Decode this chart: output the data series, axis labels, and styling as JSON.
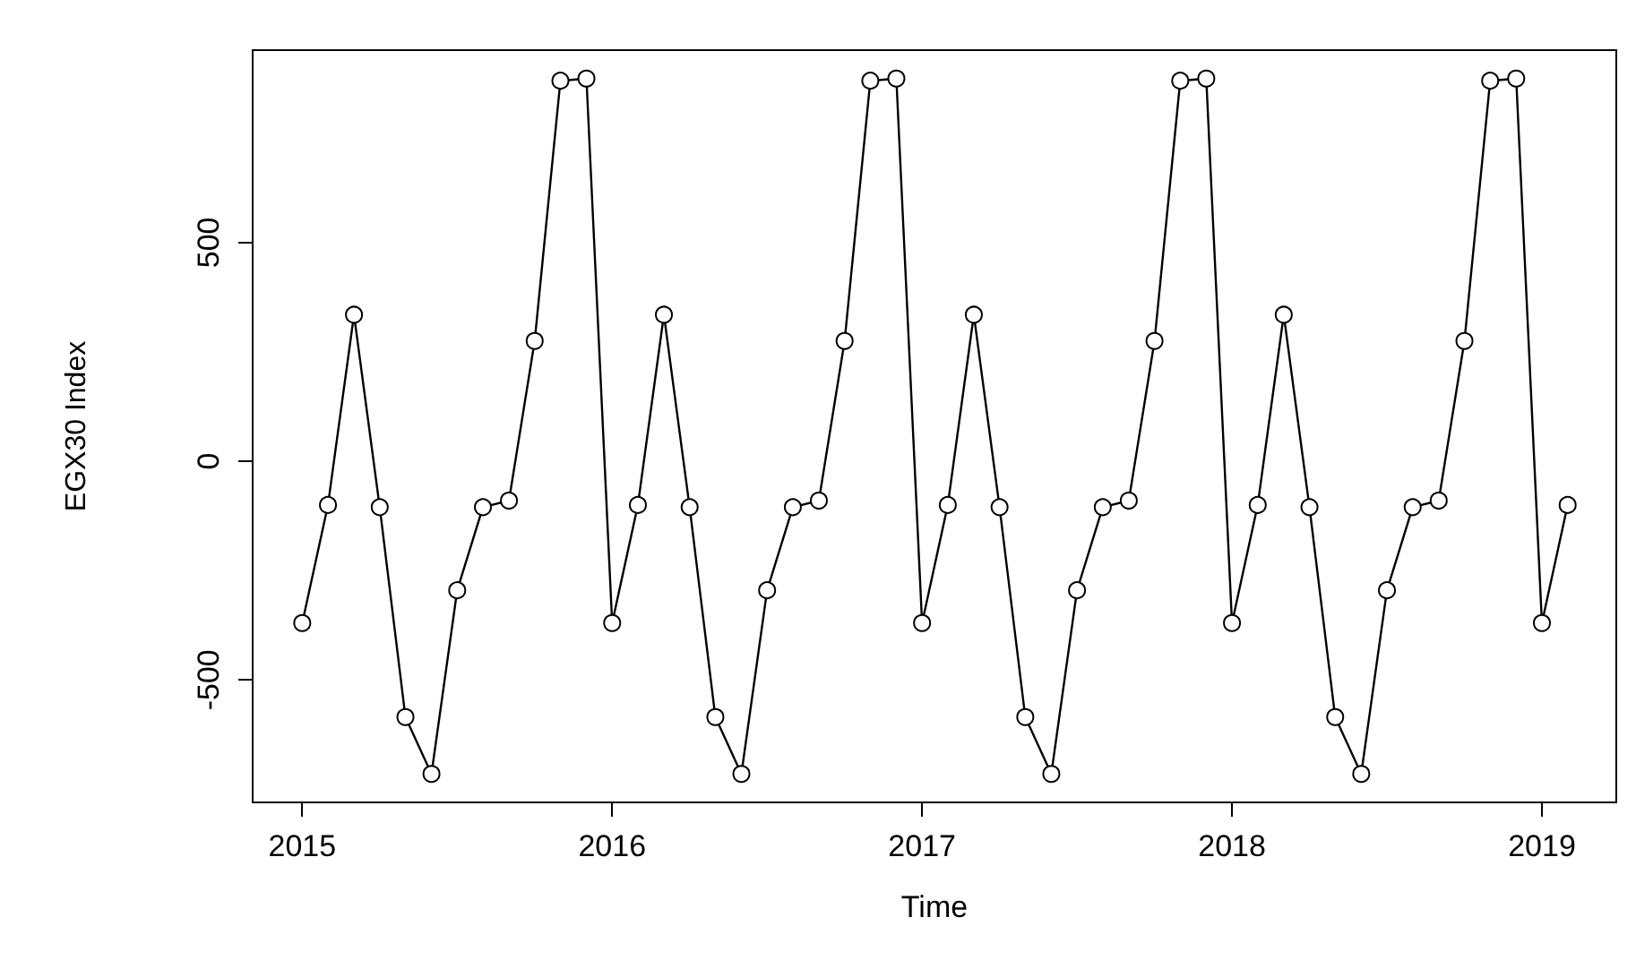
{
  "chart_data": {
    "type": "line",
    "xlabel": "Time",
    "ylabel": "EGX30 Index",
    "x": [
      2015,
      2015.083,
      2015.167,
      2015.25,
      2015.333,
      2015.417,
      2015.5,
      2015.583,
      2015.667,
      2015.75,
      2015.833,
      2015.917,
      2016,
      2016.083,
      2016.167,
      2016.25,
      2016.333,
      2016.417,
      2016.5,
      2016.583,
      2016.667,
      2016.75,
      2016.833,
      2016.917,
      2017,
      2017.083,
      2017.167,
      2017.25,
      2017.333,
      2017.417,
      2017.5,
      2017.583,
      2017.667,
      2017.75,
      2017.833,
      2017.917,
      2018,
      2018.083,
      2018.167,
      2018.25,
      2018.333,
      2018.417,
      2018.5,
      2018.583,
      2018.667,
      2018.75,
      2018.833,
      2018.917,
      2019,
      2019.083
    ],
    "series": [
      {
        "color": "#000000",
        "values": [
          -370,
          -100,
          335,
          -105,
          -585,
          -715,
          -295,
          -105,
          -90,
          275,
          870,
          875,
          -370,
          -100,
          335,
          -105,
          -585,
          -715,
          -295,
          -105,
          -90,
          275,
          870,
          875,
          -370,
          -100,
          335,
          -105,
          -585,
          -715,
          -295,
          -105,
          -90,
          275,
          870,
          875,
          -370,
          -100,
          335,
          -105,
          -585,
          -715,
          -295,
          -105,
          -90,
          275,
          870,
          875,
          -370,
          -100
        ]
      }
    ],
    "xlim": [
      2014.84,
      2019.24
    ],
    "xticks": [
      2015,
      2016,
      2017,
      2018,
      2019
    ],
    "ylim": [
      -780,
      940
    ],
    "yticks": [
      -500,
      0,
      500
    ],
    "marker": "circle",
    "line_style": "solid",
    "grid": false
  }
}
